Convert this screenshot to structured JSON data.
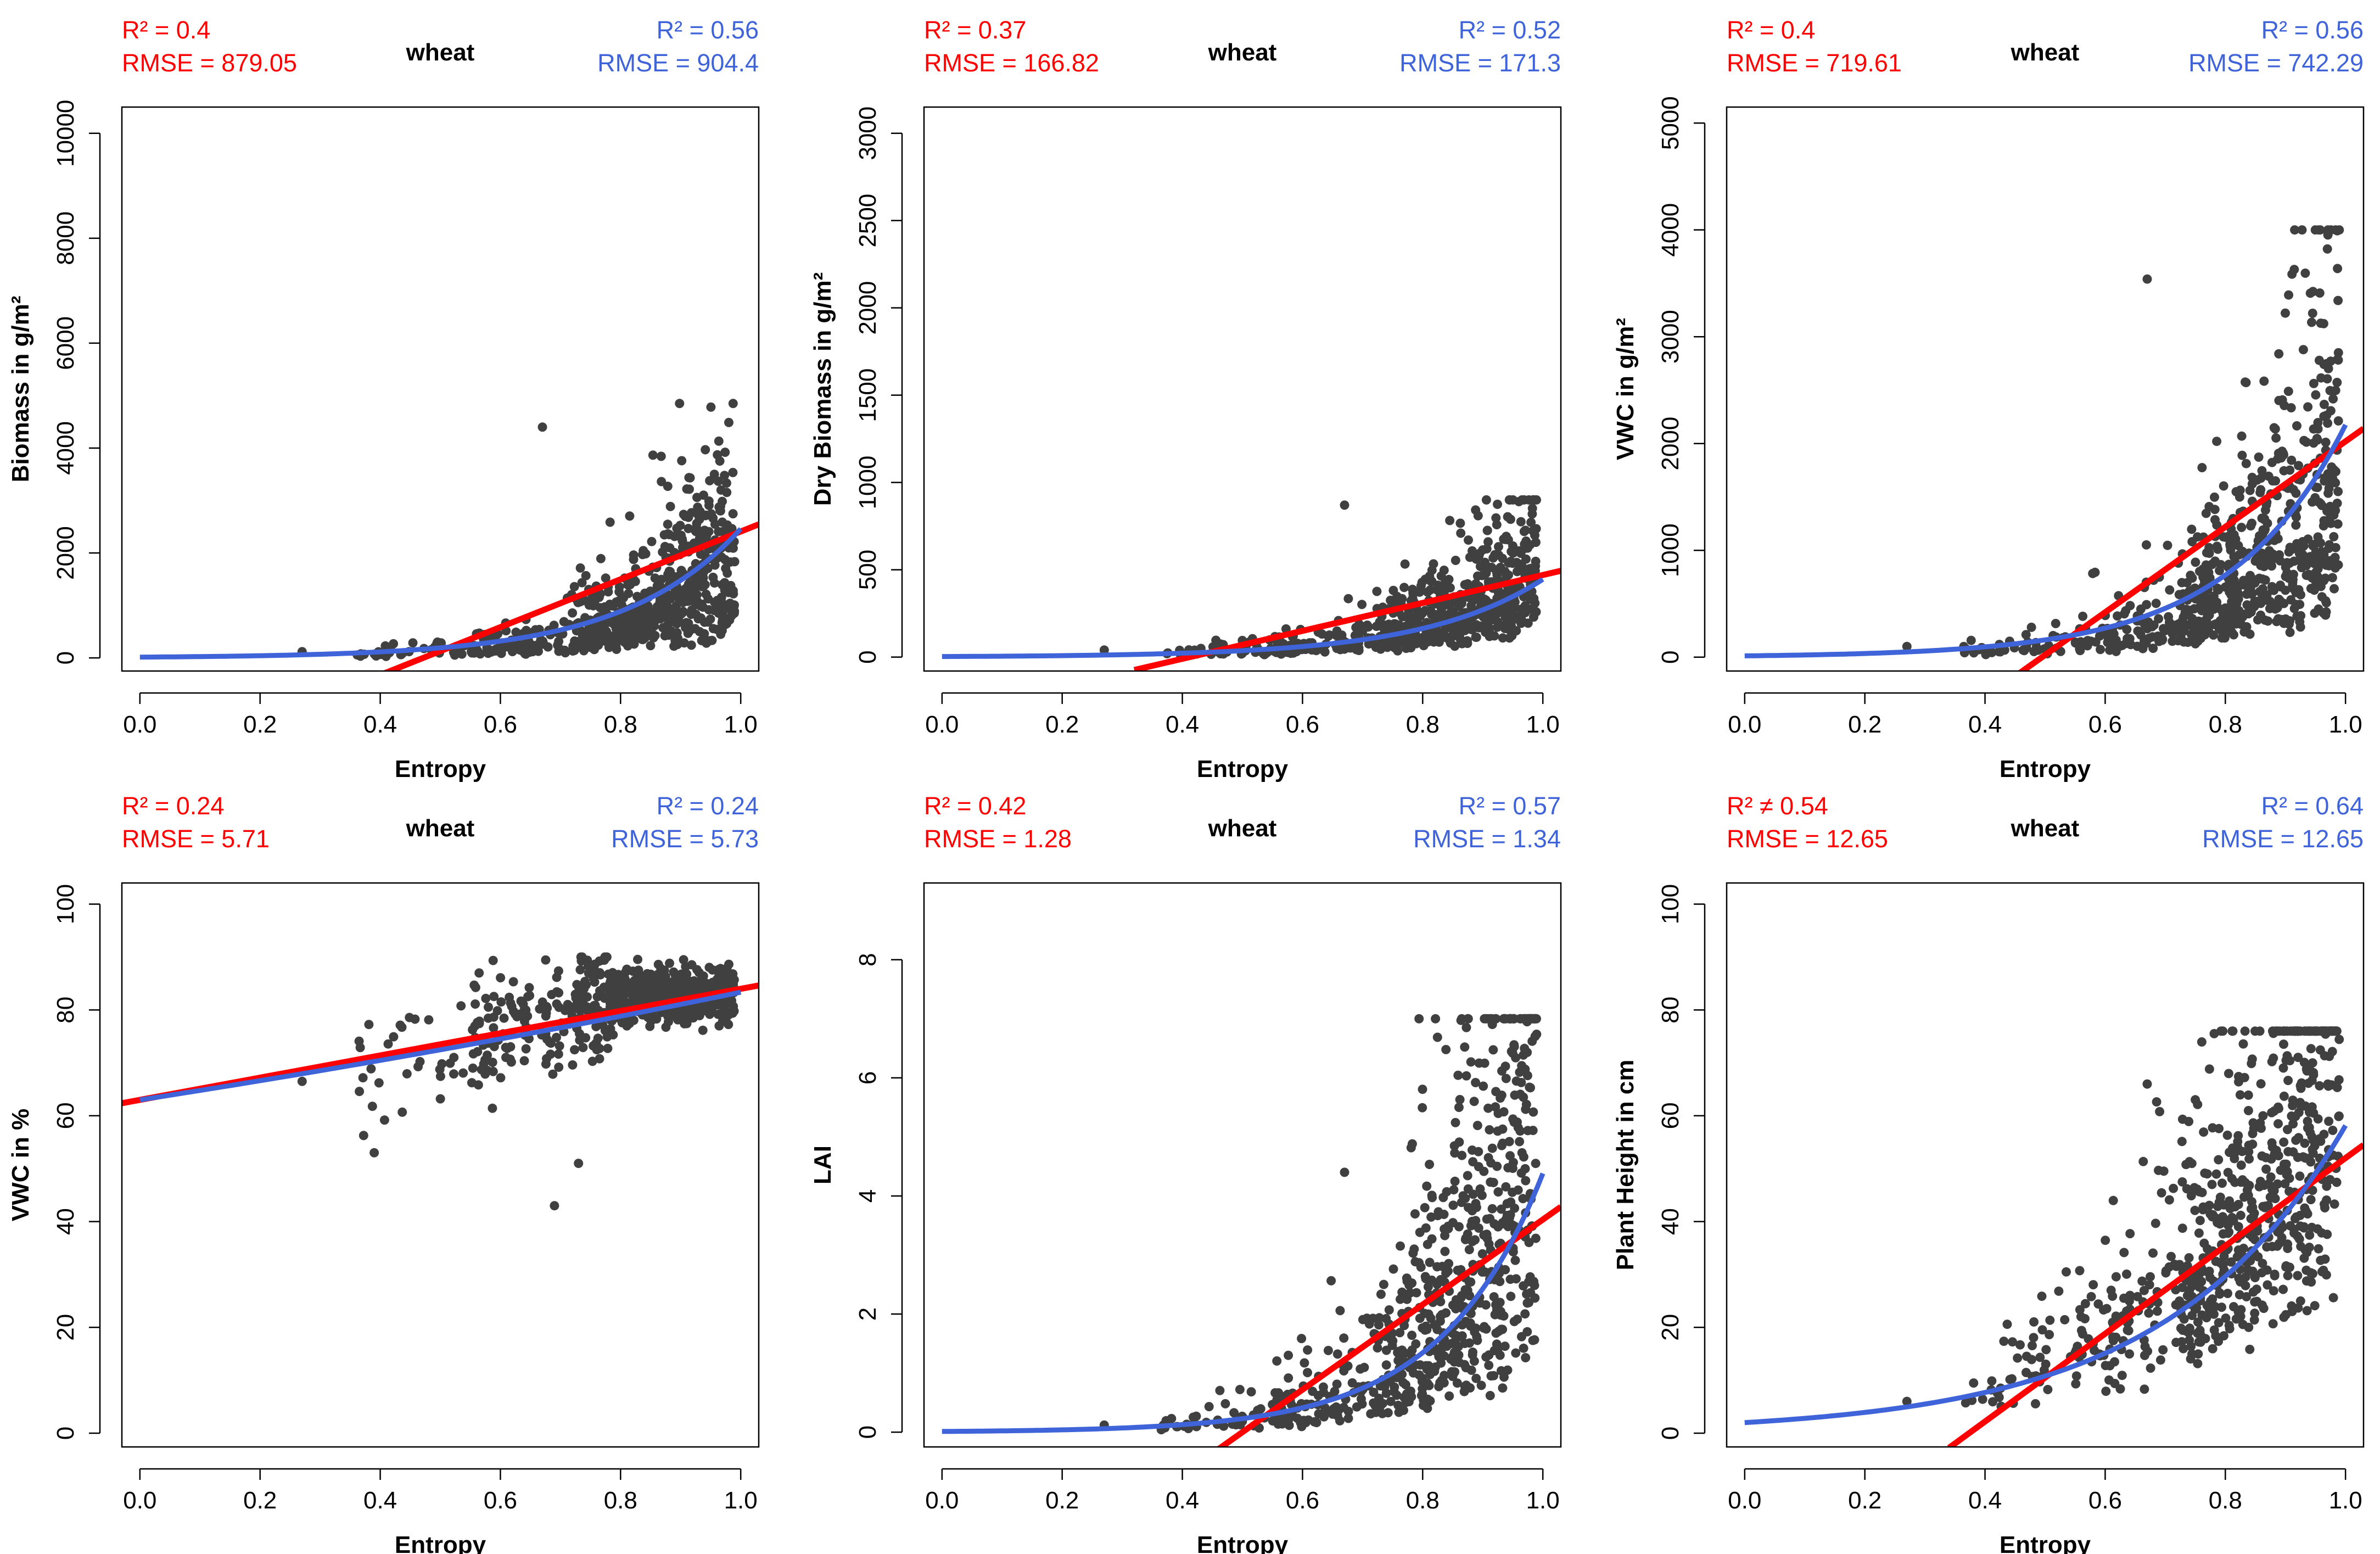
{
  "chart_data": [
    {
      "type": "scatter",
      "title": "wheat",
      "xlabel": "Entropy",
      "ylabel": "Biomass in g/m²",
      "xlim": [
        -0.03,
        1.03
      ],
      "ylim": [
        -250,
        10500
      ],
      "xticks": [
        0.0,
        0.2,
        0.4,
        0.6,
        0.8,
        1.0
      ],
      "xtick_labels": [
        "0.0",
        "0.2",
        "0.4",
        "0.6",
        "0.8",
        "1.0"
      ],
      "yticks": [
        0,
        2000,
        4000,
        6000,
        8000,
        10000
      ],
      "ytick_labels": [
        "0",
        "2000",
        "4000",
        "6000",
        "8000",
        "10000"
      ],
      "linear_fit": {
        "color": "#ff0000",
        "r2_text": "R² = 0.4",
        "rmse_text": "RMSE = 879.05",
        "slope": 4560,
        "intercept": -2150,
        "x_range": [
          0.4,
          1.03
        ]
      },
      "exp_fit": {
        "color": "#3f63d8",
        "r2_text": "R² = 0.56",
        "rmse_text": "RMSE = 904.4",
        "a": 15,
        "b": 5.1,
        "x_range": [
          0.0,
          1.0
        ]
      },
      "scatter": {
        "color": "#404040",
        "n": 700,
        "seed": 11,
        "model": "exp",
        "a": 8,
        "b": 5.5,
        "noise": 0.75,
        "y_max": 4850,
        "y_min": 0,
        "outliers": [
          [
            0.27,
            120
          ],
          [
            0.67,
            4400
          ]
        ]
      }
    },
    {
      "type": "scatter",
      "title": "wheat",
      "xlabel": "Entropy",
      "ylabel": "Dry Biomass in g/m²",
      "xlim": [
        -0.03,
        1.03
      ],
      "ylim": [
        -80,
        3150
      ],
      "xticks": [
        0.0,
        0.2,
        0.4,
        0.6,
        0.8,
        1.0
      ],
      "xtick_labels": [
        "0.0",
        "0.2",
        "0.4",
        "0.6",
        "0.8",
        "1.0"
      ],
      "yticks": [
        0,
        500,
        1000,
        1500,
        2000,
        2500,
        3000
      ],
      "ytick_labels": [
        "0",
        "500",
        "1000",
        "1500",
        "2000",
        "2500",
        "3000"
      ],
      "linear_fit": {
        "color": "#ff0000",
        "r2_text": "R² = 0.37",
        "rmse_text": "RMSE = 166.82",
        "slope": 800,
        "intercept": -330,
        "x_range": [
          0.32,
          1.03
        ]
      },
      "exp_fit": {
        "color": "#3f63d8",
        "r2_text": "R² = 0.52",
        "rmse_text": "RMSE = 171.3",
        "a": 3,
        "b": 5.0,
        "x_range": [
          0.0,
          1.0
        ]
      },
      "scatter": {
        "color": "#404040",
        "n": 700,
        "seed": 23,
        "model": "exp",
        "a": 2,
        "b": 5.6,
        "noise": 0.65,
        "y_max": 900,
        "y_min": 0,
        "outliers": [
          [
            0.27,
            40
          ],
          [
            0.67,
            870
          ]
        ]
      }
    },
    {
      "type": "scatter",
      "title": "wheat",
      "xlabel": "Entropy",
      "ylabel": "VWC in g/m²",
      "xlim": [
        -0.03,
        1.03
      ],
      "ylim": [
        -130,
        5150
      ],
      "xticks": [
        0.0,
        0.2,
        0.4,
        0.6,
        0.8,
        1.0
      ],
      "xtick_labels": [
        "0.0",
        "0.2",
        "0.4",
        "0.6",
        "0.8",
        "1.0"
      ],
      "yticks": [
        0,
        1000,
        2000,
        3000,
        4000,
        5000
      ],
      "ytick_labels": [
        "0",
        "1000",
        "2000",
        "3000",
        "4000",
        "5000"
      ],
      "linear_fit": {
        "color": "#ff0000",
        "r2_text": "R² = 0.4",
        "rmse_text": "RMSE = 719.61",
        "slope": 4000,
        "intercept": -1980,
        "x_range": [
          0.44,
          1.03
        ]
      },
      "exp_fit": {
        "color": "#3f63d8",
        "r2_text": "R² = 0.56",
        "rmse_text": "RMSE = 742.29",
        "a": 12,
        "b": 5.2,
        "x_range": [
          0.0,
          1.0
        ]
      },
      "scatter": {
        "color": "#404040",
        "n": 700,
        "seed": 37,
        "model": "exp",
        "a": 6,
        "b": 5.7,
        "noise": 0.75,
        "y_max": 4000,
        "y_min": 0,
        "outliers": [
          [
            0.27,
            100
          ],
          [
            0.67,
            3540
          ]
        ]
      }
    },
    {
      "type": "scatter",
      "title": "wheat",
      "xlabel": "Entropy",
      "ylabel": "VWC in %",
      "xlim": [
        -0.03,
        1.03
      ],
      "ylim": [
        -2.6,
        104
      ],
      "xticks": [
        0.0,
        0.2,
        0.4,
        0.6,
        0.8,
        1.0
      ],
      "xtick_labels": [
        "0.0",
        "0.2",
        "0.4",
        "0.6",
        "0.8",
        "1.0"
      ],
      "yticks": [
        0,
        20,
        40,
        60,
        80,
        100
      ],
      "ytick_labels": [
        "0",
        "20",
        "40",
        "60",
        "80",
        "100"
      ],
      "linear_fit": {
        "color": "#ff0000",
        "r2_text": "R² = 0.24",
        "rmse_text": "RMSE = 5.71",
        "slope": 21,
        "intercept": 63,
        "x_range": [
          -0.03,
          1.03
        ]
      },
      "exp_fit": {
        "color": "#3f63d8",
        "r2_text": "R² = 0.24",
        "rmse_text": "RMSE = 5.73",
        "a": 63,
        "b": 0.28,
        "x_range": [
          0.0,
          1.0
        ]
      },
      "scatter": {
        "color": "#404040",
        "n": 700,
        "seed": 53,
        "model": "vwc",
        "y_max": 90,
        "y_min": 43,
        "outliers": [
          [
            0.27,
            66.5
          ],
          [
            0.69,
            43
          ],
          [
            0.39,
            53
          ],
          [
            0.73,
            51
          ]
        ]
      }
    },
    {
      "type": "scatter",
      "title": "wheat",
      "xlabel": "Entropy",
      "ylabel": "LAI",
      "xlim": [
        -0.03,
        1.03
      ],
      "ylim": [
        -0.25,
        9.3
      ],
      "xticks": [
        0.0,
        0.2,
        0.4,
        0.6,
        0.8,
        1.0
      ],
      "xtick_labels": [
        "0.0",
        "0.2",
        "0.4",
        "0.6",
        "0.8",
        "1.0"
      ],
      "yticks": [
        0,
        2,
        4,
        6,
        8
      ],
      "ytick_labels": [
        "0",
        "2",
        "4",
        "6",
        "8"
      ],
      "linear_fit": {
        "color": "#ff0000",
        "r2_text": "R² = 0.42",
        "rmse_text": "RMSE = 1.28",
        "slope": 7.2,
        "intercept": -3.6,
        "x_range": [
          0.46,
          1.03
        ]
      },
      "exp_fit": {
        "color": "#3f63d8",
        "r2_text": "R² = 0.57",
        "rmse_text": "RMSE = 1.34",
        "a": 0.012,
        "b": 5.9,
        "x_range": [
          0.0,
          1.0
        ]
      },
      "scatter": {
        "color": "#404040",
        "n": 700,
        "seed": 71,
        "model": "exp",
        "a": 0.01,
        "b": 6.3,
        "noise": 0.75,
        "y_max": 7.0,
        "y_min": 0,
        "outliers": [
          [
            0.27,
            0.12
          ],
          [
            0.67,
            4.4
          ]
        ]
      }
    },
    {
      "type": "scatter",
      "title": "wheat",
      "xlabel": "Entropy",
      "ylabel": "Plant Height in cm",
      "xlim": [
        -0.03,
        1.03
      ],
      "ylim": [
        -2.6,
        104
      ],
      "xticks": [
        0.0,
        0.2,
        0.4,
        0.6,
        0.8,
        1.0
      ],
      "xtick_labels": [
        "0.0",
        "0.2",
        "0.4",
        "0.6",
        "0.8",
        "1.0"
      ],
      "yticks": [
        0,
        20,
        40,
        60,
        80,
        100
      ],
      "ytick_labels": [
        "0",
        "20",
        "40",
        "60",
        "80",
        "100"
      ],
      "linear_fit": {
        "color": "#ff0000",
        "r2_text": "R² ≠ 0.54",
        "rmse_text": "RMSE = 12.65",
        "slope": 83,
        "intercept": -31,
        "x_range": [
          0.34,
          1.03
        ]
      },
      "exp_fit": {
        "color": "#3f63d8",
        "r2_text": "R² = 0.64",
        "rmse_text": "RMSE = 12.65",
        "a": 2,
        "b": 3.37,
        "x_range": [
          0.0,
          1.0
        ]
      },
      "scatter": {
        "color": "#404040",
        "n": 700,
        "seed": 97,
        "model": "exp",
        "a": 2.5,
        "b": 3.3,
        "noise": 0.45,
        "y_max": 76,
        "y_min": 5,
        "outliers": [
          [
            0.27,
            6
          ],
          [
            0.67,
            66
          ]
        ]
      }
    }
  ]
}
